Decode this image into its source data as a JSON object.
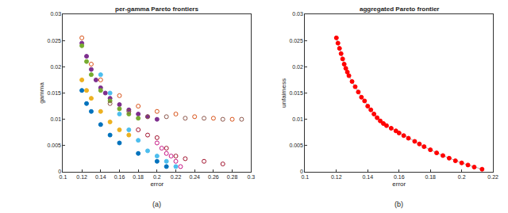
{
  "chart_data": [
    {
      "type": "scatter",
      "title": "per-gamma Pareto frontiers",
      "x_label": "error",
      "y_label": "gamma",
      "annotations": [
        "(a)"
      ],
      "xlim": [
        0.1,
        0.3
      ],
      "xticks": [
        0.1,
        0.12,
        0.14,
        0.16,
        0.18,
        0.2,
        0.22,
        0.24,
        0.26,
        0.28,
        0.3
      ],
      "ylim": [
        0,
        0.03
      ],
      "yticks": [
        0,
        0.005,
        0.01,
        0.015,
        0.02,
        0.025,
        0.03
      ],
      "series": [
        {
          "color": "#7e2f8e",
          "marker": "circle",
          "x": [
            0.12,
            0.125,
            0.13,
            0.135,
            0.14,
            0.145,
            0.15,
            0.16,
            0.17,
            0.18,
            0.19,
            0.2
          ],
          "values": [
            0.0245,
            0.022,
            0.0195,
            0.0175,
            0.016,
            0.015,
            0.014,
            0.0128,
            0.0118,
            0.011,
            0.0105,
            0.01
          ]
        },
        {
          "color": "#77ac30",
          "marker": "circle",
          "x": [
            0.12,
            0.125,
            0.13,
            0.14,
            0.15,
            0.16,
            0.17,
            0.18
          ],
          "values": [
            0.024,
            0.021,
            0.0185,
            0.0155,
            0.0135,
            0.012,
            0.011,
            0.0102
          ]
        },
        {
          "color": "#edb120",
          "marker": "circle",
          "x": [
            0.12,
            0.125,
            0.13,
            0.14,
            0.15,
            0.16,
            0.17
          ],
          "values": [
            0.0175,
            0.0155,
            0.014,
            0.0115,
            0.0095,
            0.008,
            0.007
          ]
        },
        {
          "color": "#0072bd",
          "marker": "circle",
          "x": [
            0.12,
            0.125,
            0.13,
            0.14,
            0.15,
            0.16,
            0.18,
            0.2,
            0.21
          ],
          "values": [
            0.0155,
            0.013,
            0.0115,
            0.009,
            0.007,
            0.0055,
            0.0035,
            0.002,
            0.001
          ]
        },
        {
          "color": "#4dbeee",
          "marker": "circle",
          "x": [
            0.14,
            0.15,
            0.16,
            0.17,
            0.18,
            0.19,
            0.2,
            0.21,
            0.22
          ],
          "values": [
            0.0185,
            0.015,
            0.011,
            0.008,
            0.006,
            0.004,
            0.003,
            0.002,
            0.001
          ]
        },
        {
          "color": "#d95319",
          "marker": "circle-open",
          "x": [
            0.12,
            0.13,
            0.14,
            0.16,
            0.18,
            0.2,
            0.22,
            0.24,
            0.26,
            0.28
          ],
          "values": [
            0.0255,
            0.0205,
            0.0175,
            0.0145,
            0.0125,
            0.0115,
            0.011,
            0.0105,
            0.0102,
            0.01
          ]
        },
        {
          "color": "#a2142f",
          "marker": "circle-open",
          "x": [
            0.18,
            0.19,
            0.2,
            0.21,
            0.22,
            0.23,
            0.25,
            0.27
          ],
          "values": [
            0.008,
            0.007,
            0.0065,
            0.0045,
            0.003,
            0.0025,
            0.002,
            0.0015
          ]
        },
        {
          "color": "#8c564b",
          "marker": "circle-open",
          "x": [
            0.15,
            0.17,
            0.19,
            0.21,
            0.23,
            0.25,
            0.27,
            0.29
          ],
          "values": [
            0.013,
            0.0115,
            0.0105,
            0.0105,
            0.0102,
            0.0102,
            0.01,
            0.01
          ]
        },
        {
          "color": "#c71585",
          "marker": "circle-open",
          "x": [
            0.2,
            0.205,
            0.21,
            0.215,
            0.22,
            0.225
          ],
          "values": [
            0.0055,
            0.0045,
            0.0035,
            0.003,
            0.002,
            0.001
          ]
        }
      ]
    },
    {
      "type": "scatter",
      "title": "aggregated Pareto frontier",
      "x_label": "error",
      "y_label": "unfairness",
      "annotations": [
        "(b)"
      ],
      "xlim": [
        0.1,
        0.22
      ],
      "xticks": [
        0.1,
        0.12,
        0.14,
        0.16,
        0.18,
        0.2,
        0.22
      ],
      "ylim": [
        0,
        0.03
      ],
      "yticks": [
        0,
        0.005,
        0.01,
        0.015,
        0.02,
        0.025,
        0.03
      ],
      "series": [
        {
          "color": "#ff0000",
          "marker": "circle",
          "line_style": "solid",
          "x": [
            0.12,
            0.121,
            0.122,
            0.123,
            0.124,
            0.125,
            0.126,
            0.127,
            0.128,
            0.13,
            0.132,
            0.134,
            0.136,
            0.138,
            0.14,
            0.142,
            0.144,
            0.146,
            0.148,
            0.15,
            0.152,
            0.155,
            0.158,
            0.16,
            0.163,
            0.166,
            0.17,
            0.173,
            0.176,
            0.18,
            0.184,
            0.188,
            0.192,
            0.196,
            0.2,
            0.204,
            0.208,
            0.213
          ],
          "values": [
            0.0255,
            0.0245,
            0.0235,
            0.0225,
            0.0215,
            0.0205,
            0.0197,
            0.019,
            0.0183,
            0.0172,
            0.0162,
            0.0152,
            0.0142,
            0.0135,
            0.0125,
            0.0118,
            0.011,
            0.0103,
            0.0097,
            0.0092,
            0.0088,
            0.0083,
            0.0078,
            0.0074,
            0.0069,
            0.0064,
            0.0058,
            0.0053,
            0.0048,
            0.0042,
            0.0036,
            0.0031,
            0.0026,
            0.0021,
            0.0017,
            0.0013,
            0.0009,
            0.0005
          ]
        }
      ]
    }
  ]
}
